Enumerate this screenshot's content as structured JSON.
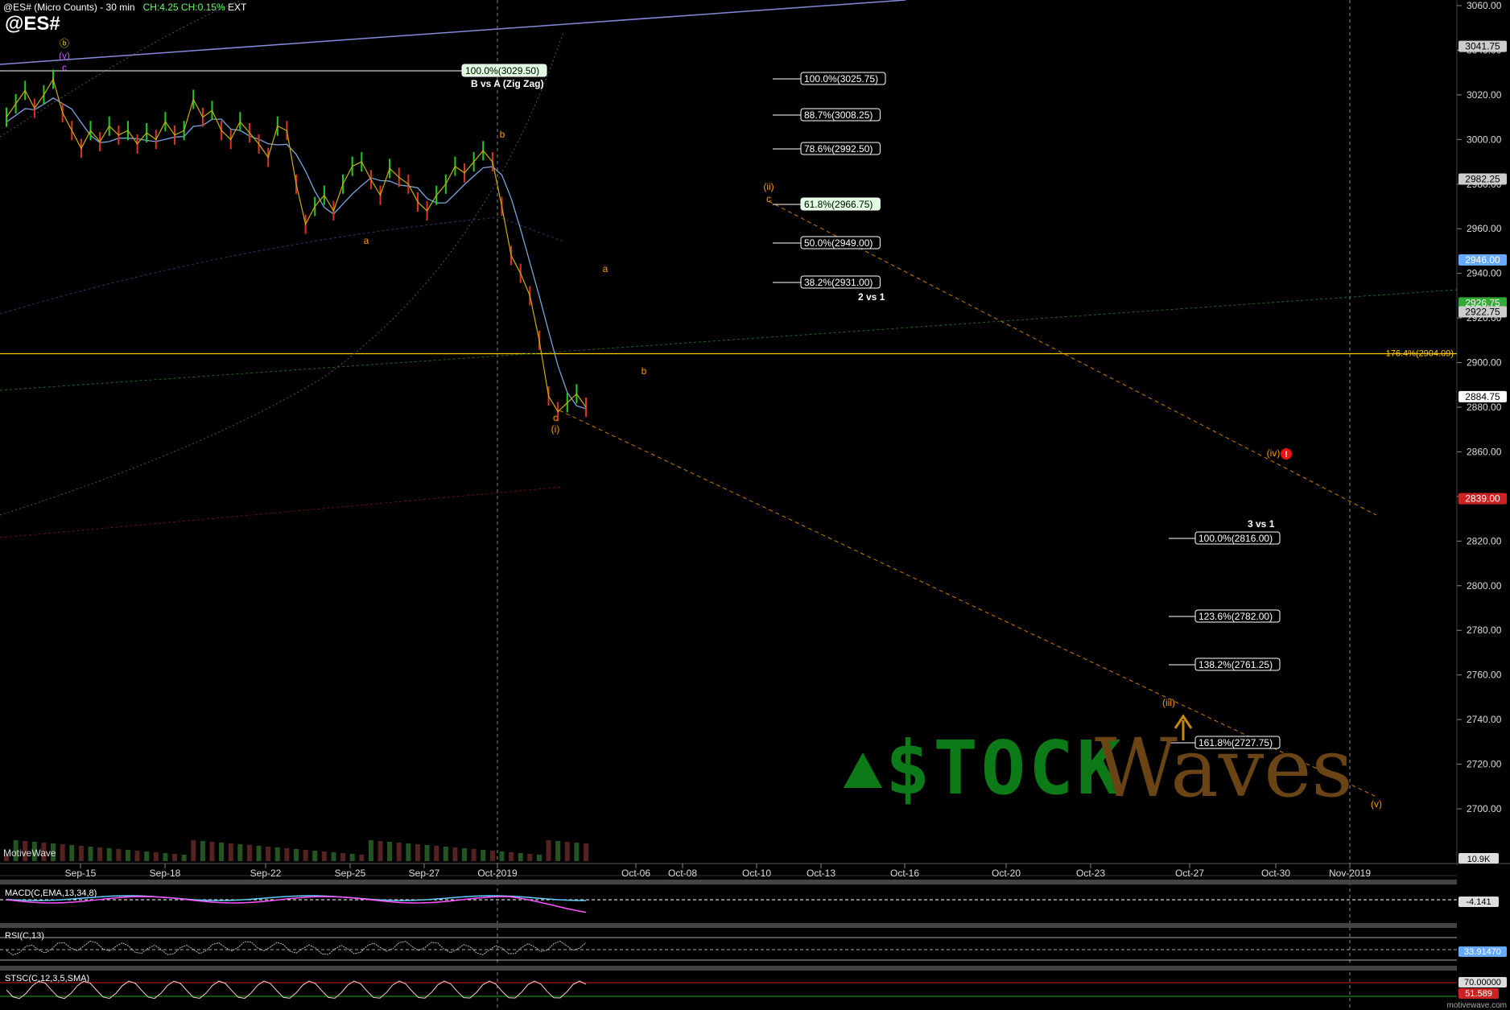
{
  "header": {
    "symbol_line": "@ES# (Micro Counts) - 30 min",
    "change": "CH:4.25 CH:0.15%",
    "ext": "EXT",
    "big_symbol": "@ES#"
  },
  "branding": {
    "motivewave": "MotiveWave",
    "watermark": "motivewave.com",
    "logo_stock": "$TOCK",
    "logo_waves": "Waves"
  },
  "colors": {
    "background": "#000000",
    "price_axis": "#1a1a1a",
    "fib_box": "#ffffff",
    "wave_orange": "#ff9900",
    "yellow_line": "#ffcc00",
    "blue_line": "#7777cc",
    "macd_line": "#ff55ff",
    "macd_signal": "#66ccff"
  },
  "chart_data": [
    {
      "type": "line",
      "title": "@ES# (Micro Counts) - 30 min",
      "y_axis_ticks": [
        2700,
        2720,
        2740,
        2760,
        2780,
        2800,
        2820,
        2840,
        2860,
        2880,
        2900,
        2920,
        2940,
        2960,
        2980,
        3000,
        3020,
        3040,
        3060
      ],
      "y_axis_labels": [
        "2700.00",
        "2720.00",
        "2740.00",
        "2760.00",
        "2780.00",
        "2800.00",
        "2820.00",
        "2840.00",
        "2860.00",
        "2880.00",
        "2900.00",
        "2920.00",
        "2940.00",
        "2960.00",
        "2980.00",
        "3000.00",
        "3020.00",
        "3040.00",
        "3060.00"
      ],
      "ylim": [
        2689,
        3062
      ],
      "x_axis_labels": [
        "Sep-15",
        "Sep-18",
        "Sep-22",
        "Sep-25",
        "Sep-27",
        "Oct-2019",
        "Oct-06",
        "Oct-08",
        "Oct-10",
        "Oct-13",
        "Oct-16",
        "Oct-20",
        "Oct-23",
        "Oct-27",
        "Oct-30",
        "Nov-2019"
      ],
      "price_tags": [
        {
          "value": "3041.75",
          "color": "#cccccc"
        },
        {
          "value": "2982.25",
          "color": "#cccccc"
        },
        {
          "value": "2946.00",
          "color": "#66aaff"
        },
        {
          "value": "2926.75",
          "color": "#33aa33"
        },
        {
          "value": "2922.75",
          "color": "#cccccc"
        },
        {
          "value": "2884.75",
          "color": "#ffffff"
        },
        {
          "value": "2839.00",
          "color": "#cc2222"
        }
      ],
      "volume_tag": "10.9K",
      "series": [
        {
          "name": "price",
          "values": [
            3010,
            3016,
            3022,
            3014,
            3020,
            3027,
            3012,
            3004,
            2996,
            3004,
            2999,
            3006,
            3002,
            3004,
            2998,
            3003,
            3000,
            3008,
            3002,
            3004,
            3018,
            3010,
            3013,
            3004,
            3000,
            3008,
            3003,
            2998,
            2992,
            3006,
            3004,
            2980,
            2962,
            2970,
            2975,
            2968,
            2980,
            2988,
            2990,
            2982,
            2975,
            2987,
            2983,
            2980,
            2972,
            2968,
            2975,
            2980,
            2988,
            2985,
            2990,
            2995,
            2990,
            2970,
            2948,
            2940,
            2930,
            2910,
            2885,
            2878,
            2882,
            2886,
            2880
          ]
        }
      ]
    }
  ],
  "fib_levels": [
    {
      "label": "100.0%(3029.50)",
      "highlight": true
    },
    {
      "label": "100.0%(3025.75)",
      "highlight": false
    },
    {
      "label": "88.7%(3008.25)",
      "highlight": false
    },
    {
      "label": "78.6%(2992.50)",
      "highlight": false
    },
    {
      "label": "61.8%(2966.75)",
      "highlight": true
    },
    {
      "label": "50.0%(2949.00)",
      "highlight": false
    },
    {
      "label": "38.2%(2931.00)",
      "highlight": false
    },
    {
      "label": "100.0%(2816.00)",
      "highlight": false
    },
    {
      "label": "123.6%(2782.00)",
      "highlight": false
    },
    {
      "label": "138.2%(2761.25)",
      "highlight": false
    },
    {
      "label": "161.8%(2727.75)",
      "highlight": false
    }
  ],
  "fib_titles": [
    "B vs A (Zig Zag)",
    "2 vs 1",
    "3 vs 1"
  ],
  "extension_label": "176.4%(2904.09)",
  "wave_labels": [
    "ⓑ",
    "(v)",
    "c",
    "b",
    "a",
    "c",
    "(i)",
    "(ii)",
    "c",
    "a",
    "b",
    "(iv)",
    "(iii)",
    "(v)"
  ],
  "indicators": [
    {
      "name": "MACD(C,EMA,13,34,8)",
      "value": "-4.141"
    },
    {
      "name": "RSI(C,13)",
      "value": "33.91470"
    },
    {
      "name": "STSC(C,12,3,5,SMA)",
      "values": [
        "70.00000",
        "51.589"
      ]
    }
  ]
}
